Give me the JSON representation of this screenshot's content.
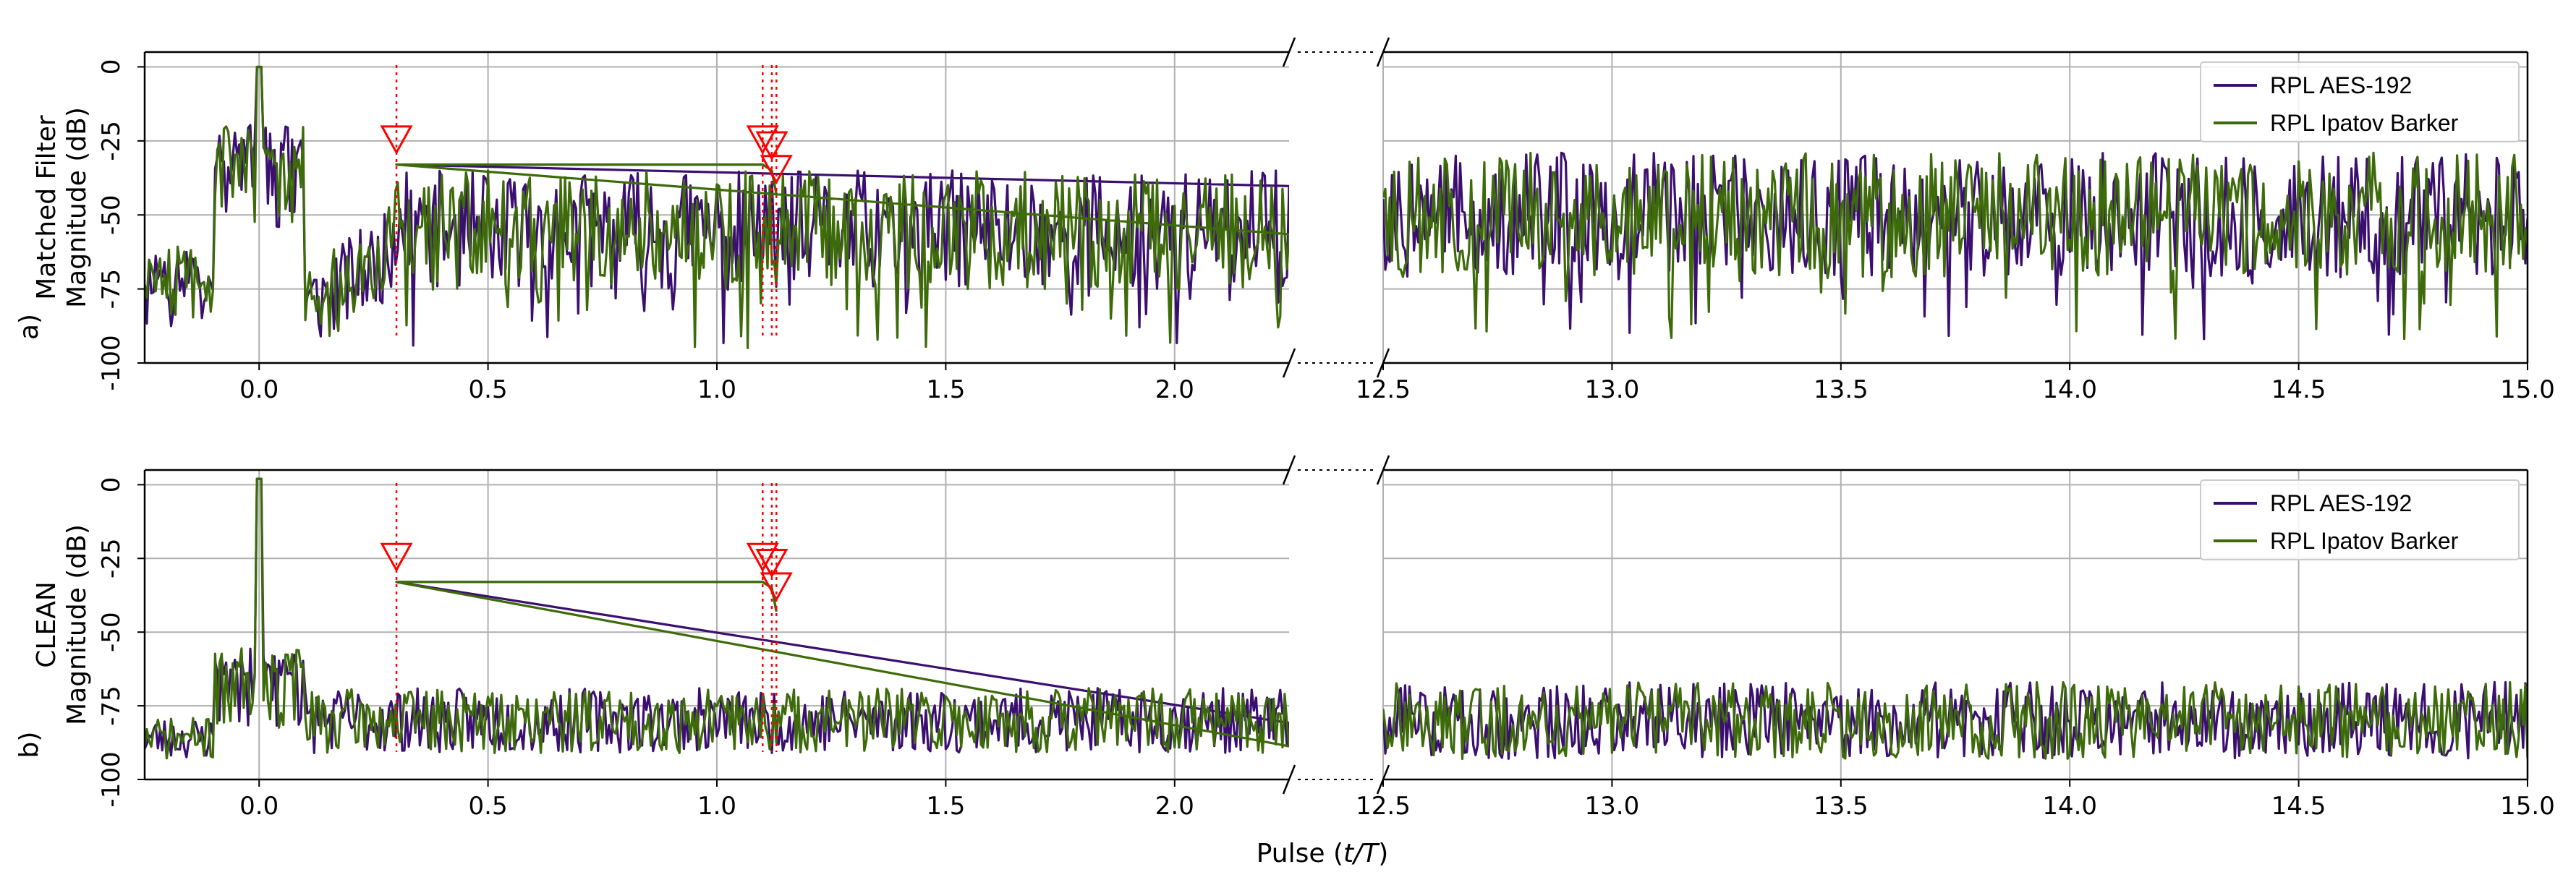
{
  "figure": {
    "xlabel_prefix": "Pulse (",
    "xlabel_var": "t/T",
    "xlabel_suffix": ")"
  },
  "chart_data": [
    {
      "type": "line",
      "panel_label": "a)",
      "ylabel_line1": "Matched Filter",
      "ylabel_line2": "Magnitude (dB)",
      "ylim": [
        -100,
        5
      ],
      "yticks": [
        "0",
        "-25",
        "-50",
        "-75",
        "-100"
      ],
      "ytick_values": [
        0,
        -25,
        -50,
        -75,
        -100
      ],
      "x_segments": [
        {
          "xlim": [
            -0.25,
            2.25
          ],
          "xticks": [
            "0.0",
            "0.5",
            "1.0",
            "1.5",
            "2.0"
          ],
          "xtick_values": [
            0,
            0.5,
            1.0,
            1.5,
            2.0
          ]
        },
        {
          "xlim": [
            12.5,
            15.0
          ],
          "xticks": [
            "12.5",
            "13.0",
            "13.5",
            "14.0",
            "14.5",
            "15.0"
          ],
          "xtick_values": [
            12.5,
            13.0,
            13.5,
            14.0,
            14.5,
            15.0
          ]
        }
      ],
      "grid": true,
      "legend_position": "top-right",
      "series": [
        {
          "name": "RPL AES-192",
          "color": "#3b0f70",
          "profile": "matched",
          "seed": 11
        },
        {
          "name": "RPL Ipatov Barker",
          "color": "#3d6b0a",
          "profile": "matched",
          "seed": 47
        }
      ],
      "markers": [
        {
          "x": 0.3,
          "y": -25
        },
        {
          "x": 1.1,
          "y": -25
        },
        {
          "x": 1.12,
          "y": -27
        },
        {
          "x": 1.13,
          "y": -35
        }
      ],
      "main_peak": {
        "x": 0.0,
        "y": 0
      },
      "sidelobe_band": {
        "x_range": [
          -0.1,
          0.1
        ],
        "level": -27
      }
    },
    {
      "type": "line",
      "panel_label": "b)",
      "ylabel_line1": "CLEAN",
      "ylabel_line2": "Magnitude (dB)",
      "ylim": [
        -100,
        5
      ],
      "yticks": [
        "0",
        "-25",
        "-50",
        "-75",
        "-100"
      ],
      "ytick_values": [
        0,
        -25,
        -50,
        -75,
        -100
      ],
      "x_segments": [
        {
          "xlim": [
            -0.25,
            2.25
          ],
          "xticks": [
            "0.0",
            "0.5",
            "1.0",
            "1.5",
            "2.0"
          ],
          "xtick_values": [
            0,
            0.5,
            1.0,
            1.5,
            2.0
          ]
        },
        {
          "xlim": [
            12.5,
            15.0
          ],
          "xticks": [
            "12.5",
            "13.0",
            "13.5",
            "14.0",
            "14.5",
            "15.0"
          ],
          "xtick_values": [
            12.5,
            13.0,
            13.5,
            14.0,
            14.5,
            15.0
          ]
        }
      ],
      "grid": true,
      "legend_position": "top-right",
      "series": [
        {
          "name": "RPL AES-192",
          "color": "#3b0f70",
          "profile": "clean",
          "seed": 23
        },
        {
          "name": "RPL Ipatov Barker",
          "color": "#3d6b0a",
          "profile": "clean",
          "seed": 71
        }
      ],
      "markers": [
        {
          "x": 0.3,
          "y": -25
        },
        {
          "x": 1.1,
          "y": -25
        },
        {
          "x": 1.12,
          "y": -27
        },
        {
          "x": 1.13,
          "y": -35
        }
      ],
      "main_peak": {
        "x": 0.0,
        "y": 2
      },
      "sidelobe_band": {
        "x_range": [
          -0.1,
          0.1
        ],
        "level": -60
      }
    }
  ]
}
